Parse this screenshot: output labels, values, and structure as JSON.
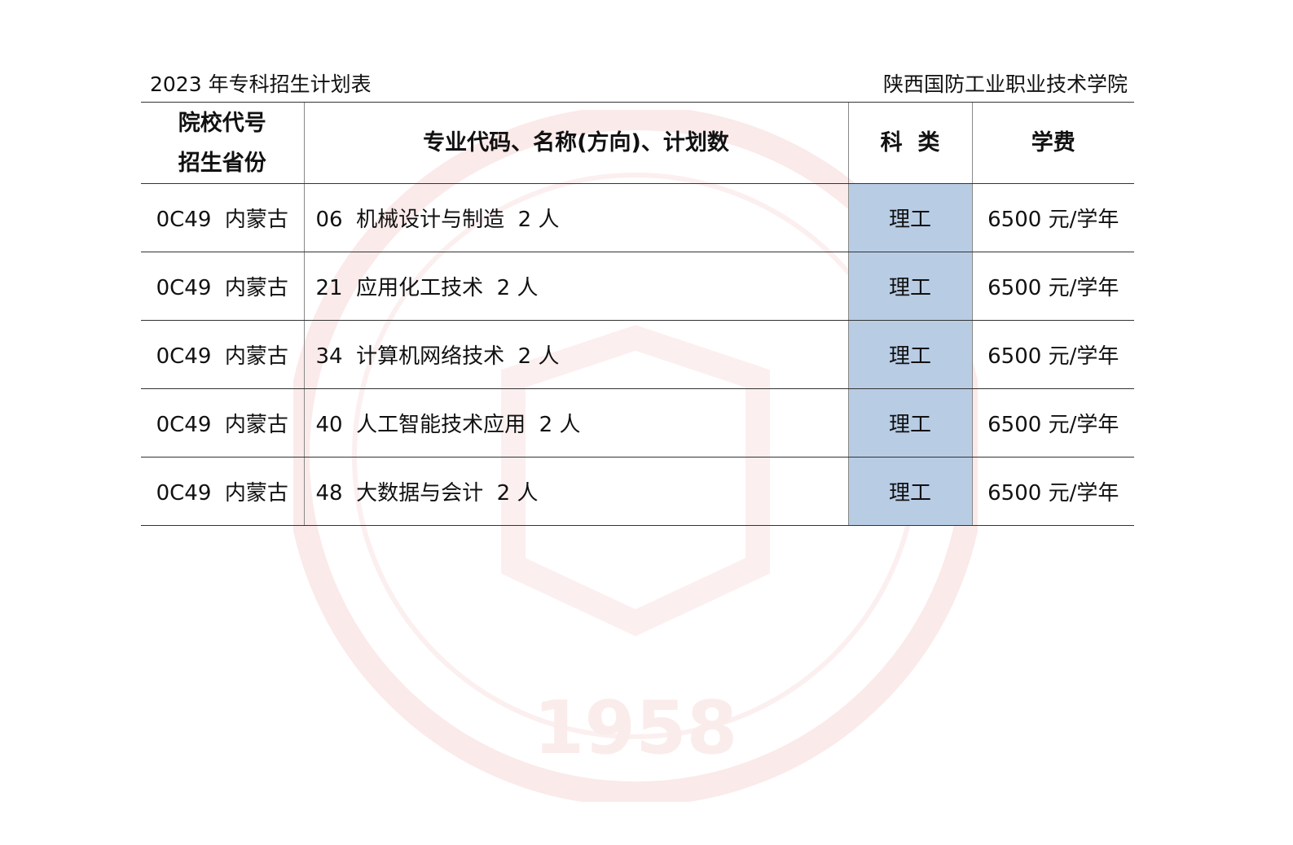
{
  "document": {
    "title": "2023 年专科招生计划表",
    "institution": "陕西国防工业职业技术学院",
    "watermark_text": "1958"
  },
  "table": {
    "headers": {
      "col1_line1": "院校代号",
      "col1_line2": "招生省份",
      "col2": "专业代码、名称(方向)、计划数",
      "col3": "科  类",
      "col4": "学费"
    },
    "rows": [
      {
        "school_province": "0C49  内蒙古",
        "major": "06  机械设计与制造  2 人",
        "category": "理工",
        "tuition": "6500 元/学年"
      },
      {
        "school_province": "0C49  内蒙古",
        "major": "21  应用化工技术  2 人",
        "category": "理工",
        "tuition": "6500 元/学年"
      },
      {
        "school_province": "0C49  内蒙古",
        "major": "34  计算机网络技术  2 人",
        "category": "理工",
        "tuition": "6500 元/学年"
      },
      {
        "school_province": "0C49  内蒙古",
        "major": "40  人工智能技术应用  2 人",
        "category": "理工",
        "tuition": "6500 元/学年"
      },
      {
        "school_province": "0C49  内蒙古",
        "major": "48  大数据与会计  2 人",
        "category": "理工",
        "tuition": "6500 元/学年"
      }
    ],
    "category_highlight_color": "#b8cce4"
  }
}
